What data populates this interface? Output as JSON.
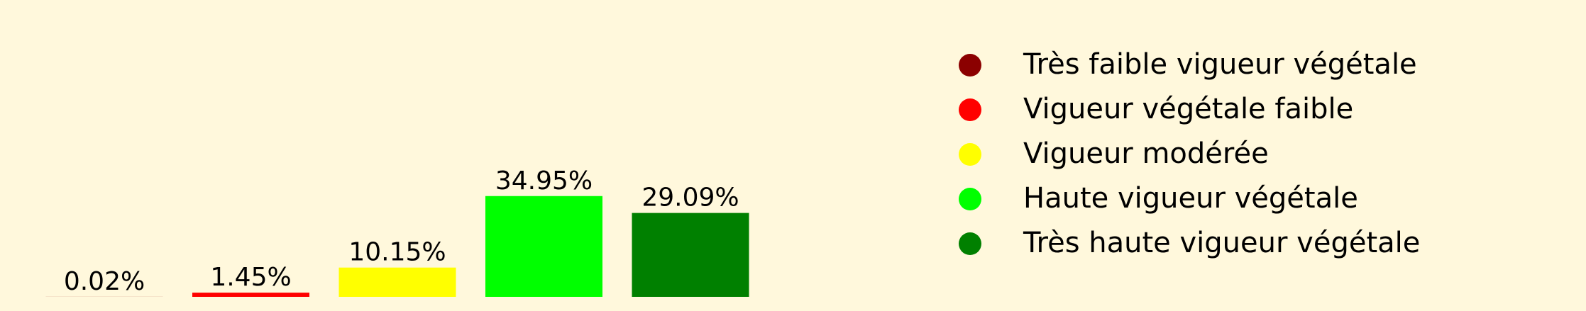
{
  "background": "#fff8dc",
  "chart_data": {
    "type": "bar",
    "categories": [
      "Très faible vigueur végétale",
      "Vigueur végétale faible",
      "Vigueur modérée",
      "Haute vigueur végétale",
      "Très haute vigueur végétale"
    ],
    "values": [
      0.02,
      1.45,
      10.15,
      34.95,
      29.09
    ],
    "value_labels": [
      "0.02%",
      "1.45%",
      "10.15%",
      "34.95%",
      "29.09%"
    ],
    "colors": [
      "#8b0000",
      "#ff0000",
      "#ffff00",
      "#00ff00",
      "#008000"
    ],
    "ylim": [
      0,
      36
    ],
    "title": "",
    "xlabel": "",
    "ylabel": "",
    "grid": false,
    "axes_visible": false,
    "legend": {
      "placement": "right",
      "entries": [
        "Très faible vigueur végétale",
        "Vigueur végétale faible",
        "Vigueur modérée",
        "Haute vigueur végétale",
        "Très haute vigueur végétale"
      ]
    }
  }
}
